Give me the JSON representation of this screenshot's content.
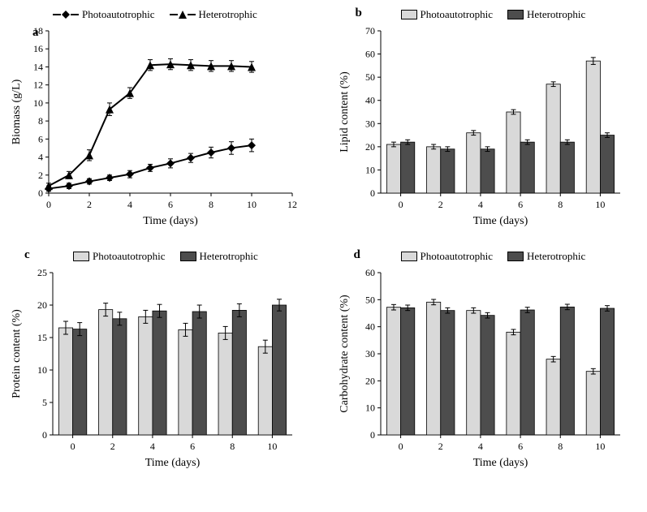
{
  "colors": {
    "photo": "#d9d9d9",
    "hetero": "#4d4d4d",
    "line": "#000000",
    "background": "#ffffff",
    "axis": "#000000"
  },
  "font": {
    "family": "Times New Roman",
    "axis_label_pt": 14,
    "tick_pt": 12,
    "panel_label_pt": 15
  },
  "panel_a": {
    "letter": "a",
    "type": "line",
    "xlabel": "Time (days)",
    "ylabel": "Biomass (g/L)",
    "xlim": [
      0,
      12
    ],
    "xtick_step": 2,
    "ylim": [
      0,
      18
    ],
    "ytick_step": 2,
    "legend": [
      "Photoautotrophic",
      "Heterotrophic"
    ],
    "series": [
      {
        "name": "Photoautotrophic",
        "marker": "diamond",
        "color": "#000000",
        "x": [
          0,
          1,
          2,
          3,
          4,
          5,
          6,
          7,
          8,
          9,
          10
        ],
        "y": [
          0.5,
          0.8,
          1.3,
          1.7,
          2.1,
          2.8,
          3.3,
          3.9,
          4.5,
          5.0,
          5.3
        ],
        "err": [
          0.3,
          0.3,
          0.3,
          0.3,
          0.4,
          0.4,
          0.5,
          0.5,
          0.6,
          0.7,
          0.7
        ]
      },
      {
        "name": "Heterotrophic",
        "marker": "triangle",
        "color": "#000000",
        "x": [
          0,
          1,
          2,
          3,
          4,
          5,
          6,
          7,
          8,
          9,
          10
        ],
        "y": [
          0.8,
          2.0,
          4.2,
          9.3,
          11.1,
          14.2,
          14.3,
          14.2,
          14.1,
          14.1,
          14.0
        ],
        "err": [
          0.3,
          0.4,
          0.6,
          0.7,
          0.6,
          0.6,
          0.6,
          0.6,
          0.6,
          0.6,
          0.6
        ]
      }
    ]
  },
  "panel_b": {
    "letter": "b",
    "type": "bar",
    "xlabel": "Time (days)",
    "ylabel": "Lipid content (%)",
    "categories": [
      0,
      2,
      4,
      6,
      8,
      10
    ],
    "ylim": [
      0,
      70
    ],
    "ytick_step": 10,
    "legend": [
      "Photoautotrophic",
      "Heterotrophic"
    ],
    "bar_colors": [
      "#d9d9d9",
      "#4d4d4d"
    ],
    "bar_width": 0.35,
    "series": [
      {
        "name": "Photoautotrophic",
        "y": [
          21,
          20,
          26,
          35,
          47,
          57
        ],
        "err": [
          1.0,
          1.0,
          1.0,
          1.0,
          1.0,
          1.5
        ]
      },
      {
        "name": "Heterotrophic",
        "y": [
          22,
          19,
          19,
          22,
          22,
          25
        ],
        "err": [
          1.0,
          1.0,
          1.0,
          1.0,
          1.0,
          1.0
        ]
      }
    ]
  },
  "panel_c": {
    "letter": "c",
    "type": "bar",
    "xlabel": "Time (days)",
    "ylabel": "Protein content (%)",
    "categories": [
      0,
      2,
      4,
      6,
      8,
      10
    ],
    "ylim": [
      0,
      25
    ],
    "ytick_step": 5,
    "legend": [
      "Photoautotrophic",
      "Heterotrophic"
    ],
    "bar_colors": [
      "#d9d9d9",
      "#4d4d4d"
    ],
    "bar_width": 0.35,
    "series": [
      {
        "name": "Photoautotrophic",
        "y": [
          16.5,
          19.3,
          18.2,
          16.2,
          15.7,
          13.6
        ],
        "err": [
          1.0,
          1.0,
          1.0,
          1.0,
          1.0,
          1.0
        ]
      },
      {
        "name": "Heterotrophic",
        "y": [
          16.3,
          17.9,
          19.1,
          19.0,
          19.2,
          20.0
        ],
        "err": [
          1.0,
          1.0,
          1.0,
          1.0,
          1.0,
          0.9
        ]
      }
    ]
  },
  "panel_d": {
    "letter": "d",
    "type": "bar",
    "xlabel": "Time (days)",
    "ylabel": "Carbohydrate content (%)",
    "categories": [
      0,
      2,
      4,
      6,
      8,
      10
    ],
    "ylim": [
      0,
      60
    ],
    "ytick_step": 10,
    "legend": [
      "Photoautotrophic",
      "Heterotrophic"
    ],
    "bar_colors": [
      "#d9d9d9",
      "#4d4d4d"
    ],
    "bar_width": 0.35,
    "series": [
      {
        "name": "Photoautotrophic",
        "y": [
          47.2,
          49.1,
          46.0,
          38.0,
          28.0,
          23.5
        ],
        "err": [
          1.0,
          1.0,
          1.0,
          1.0,
          1.0,
          1.0
        ]
      },
      {
        "name": "Heterotrophic",
        "y": [
          47.0,
          46.0,
          44.2,
          46.2,
          47.3,
          46.8
        ],
        "err": [
          1.0,
          1.0,
          1.0,
          1.0,
          1.0,
          1.0
        ]
      }
    ]
  }
}
